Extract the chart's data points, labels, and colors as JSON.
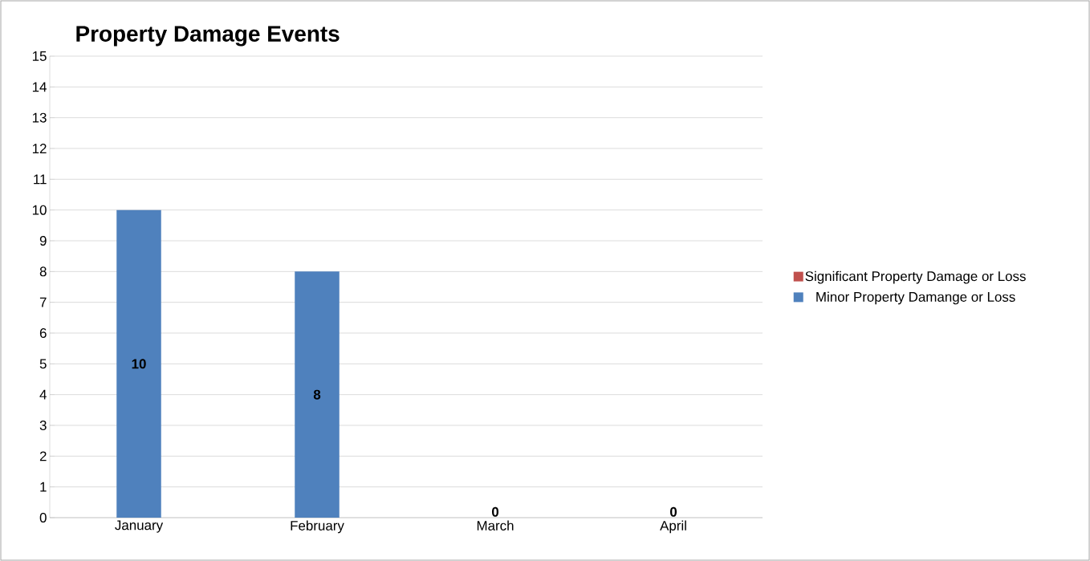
{
  "chart_data": {
    "type": "bar",
    "title": "Property Damage Events",
    "categories": [
      "January",
      "February",
      "March",
      "April"
    ],
    "stacked": true,
    "series": [
      {
        "name": "Minor Property Damange or Loss",
        "color": "#4f81bd",
        "values": [
          10,
          8,
          0,
          0
        ],
        "value_labels": [
          "10",
          "8",
          "0",
          "0"
        ]
      },
      {
        "name": "Significant Property Damage or Loss",
        "color": "#c0504d",
        "values": [
          null,
          null,
          null,
          null
        ]
      }
    ],
    "ylim": [
      0,
      15
    ],
    "yticks": [
      0,
      1,
      2,
      3,
      4,
      5,
      6,
      7,
      8,
      9,
      10,
      11,
      12,
      13,
      14,
      15
    ],
    "grid": "y",
    "legend": "right"
  }
}
